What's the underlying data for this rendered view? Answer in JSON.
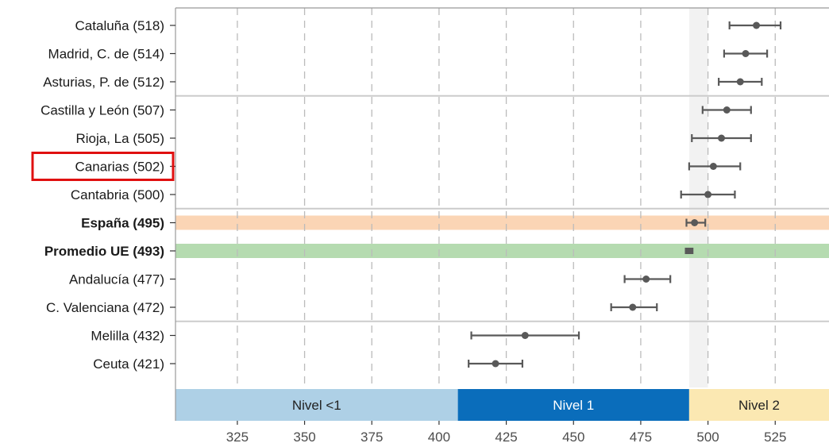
{
  "chart_data": {
    "type": "scatter",
    "subtype": "dot-with-error-bars",
    "xlim": [
      302,
      545
    ],
    "xticks": [
      325,
      350,
      375,
      400,
      425,
      450,
      475,
      500,
      525
    ],
    "grid": "dashed vertical",
    "categories": [
      {
        "label": "Cataluña (518)",
        "value": 518,
        "lo": 508,
        "hi": 527,
        "bold": false
      },
      {
        "label": "Madrid, C. de (514)",
        "value": 514,
        "lo": 506,
        "hi": 522,
        "bold": false
      },
      {
        "label": "Asturias, P. de (512)",
        "value": 512,
        "lo": 504,
        "hi": 520,
        "bold": false
      },
      {
        "label": "Castilla y León (507)",
        "value": 507,
        "lo": 498,
        "hi": 516,
        "bold": false
      },
      {
        "label": "Rioja, La (505)",
        "value": 505,
        "lo": 494,
        "hi": 516,
        "bold": false
      },
      {
        "label": "Canarias (502)",
        "value": 502,
        "lo": 493,
        "hi": 512,
        "bold": false,
        "highlighted": true
      },
      {
        "label": "Cantabria (500)",
        "value": 500,
        "lo": 490,
        "hi": 510,
        "bold": false
      },
      {
        "label": "España (495)",
        "value": 495,
        "lo": 492,
        "hi": 499,
        "bold": true,
        "band_color": "#fbd5b5"
      },
      {
        "label": "Promedio UE (493)",
        "value": 493,
        "lo": 492,
        "hi": 494,
        "bold": true,
        "band_color": "#b5dbb0"
      },
      {
        "label": "Andalucía (477)",
        "value": 477,
        "lo": 469,
        "hi": 486,
        "bold": false
      },
      {
        "label": "C. Valenciana (472)",
        "value": 472,
        "lo": 464,
        "hi": 481,
        "bold": false
      },
      {
        "label": "Melilla (432)",
        "value": 432,
        "lo": 412,
        "hi": 452,
        "bold": false
      },
      {
        "label": "Ceuta (421)",
        "value": 421,
        "lo": 411,
        "hi": 431,
        "bold": false
      }
    ],
    "group_separators_after": [
      2,
      6,
      10
    ],
    "shaded_column": {
      "from": 493,
      "to": 500,
      "color": "#f2f2f2"
    },
    "level_bands": [
      {
        "label": "Nivel <1",
        "from": 302,
        "to": 407,
        "color": "#aed0e6",
        "text_color": "#222222"
      },
      {
        "label": "Nivel 1",
        "from": 407,
        "to": 493,
        "color": "#0a6dbb",
        "text_color": "#ffffff"
      },
      {
        "label": "Nivel 2",
        "from": 493,
        "to": 545,
        "color": "#fbe8b2",
        "text_color": "#222222"
      }
    ],
    "colors": {
      "marker": "#595959",
      "grid": "#bbbbbb",
      "separator": "#cccccc",
      "highlight_box": "#e01010"
    }
  }
}
